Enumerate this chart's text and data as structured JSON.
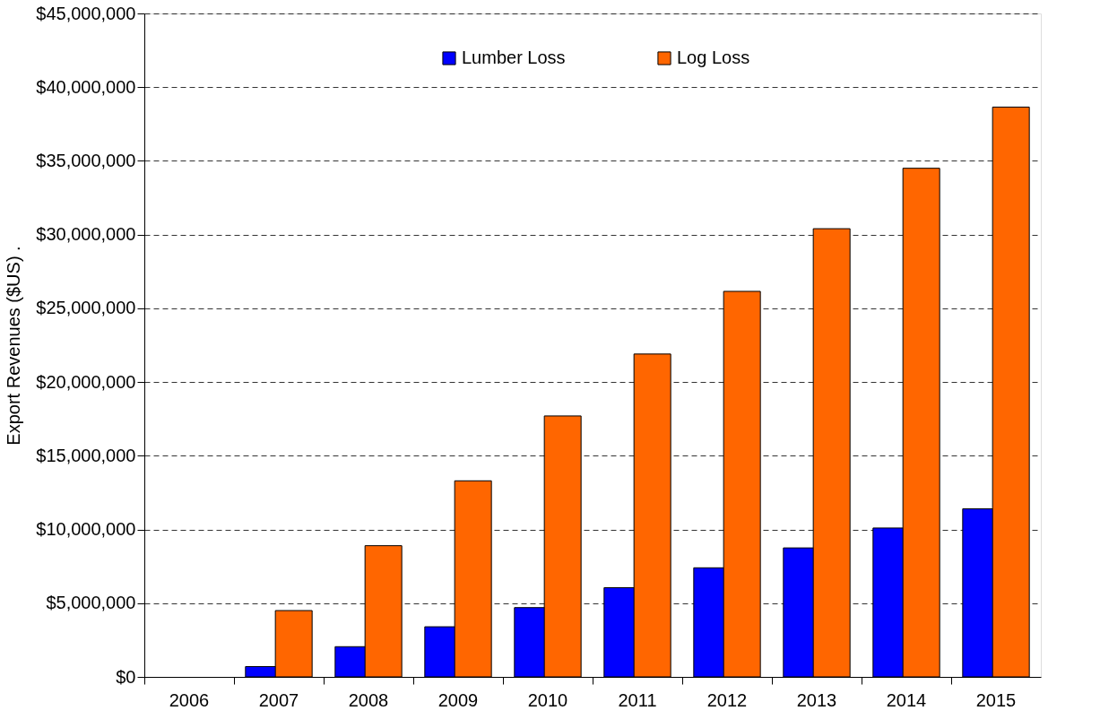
{
  "chart_data": {
    "type": "bar",
    "ylabel": "Export Revenues ($US)  .",
    "categories": [
      "2006",
      "2007",
      "2008",
      "2009",
      "2010",
      "2011",
      "2012",
      "2013",
      "2014",
      "2015"
    ],
    "series": [
      {
        "name": "Lumber Loss",
        "color": "#0000ff",
        "values": [
          0,
          700000,
          2050000,
          3400000,
          4700000,
          6050000,
          7400000,
          8750000,
          10100000,
          11400000
        ]
      },
      {
        "name": "Log Loss",
        "color": "#ff6600",
        "values": [
          0,
          4500000,
          8900000,
          13300000,
          17700000,
          21900000,
          26150000,
          30400000,
          34500000,
          38650000
        ]
      }
    ],
    "ylim": [
      0,
      45000000
    ],
    "yticks": [
      {
        "value": 0,
        "label": "$0"
      },
      {
        "value": 5000000,
        "label": "$5,000,000"
      },
      {
        "value": 10000000,
        "label": "$10,000,000"
      },
      {
        "value": 15000000,
        "label": "$15,000,000"
      },
      {
        "value": 20000000,
        "label": "$20,000,000"
      },
      {
        "value": 25000000,
        "label": "$25,000,000"
      },
      {
        "value": 30000000,
        "label": "$30,000,000"
      },
      {
        "value": 35000000,
        "label": "$35,000,000"
      },
      {
        "value": 40000000,
        "label": "$40,000,000"
      },
      {
        "value": 45000000,
        "label": "$45,000,000"
      }
    ],
    "grid": "y",
    "legend": "top"
  }
}
